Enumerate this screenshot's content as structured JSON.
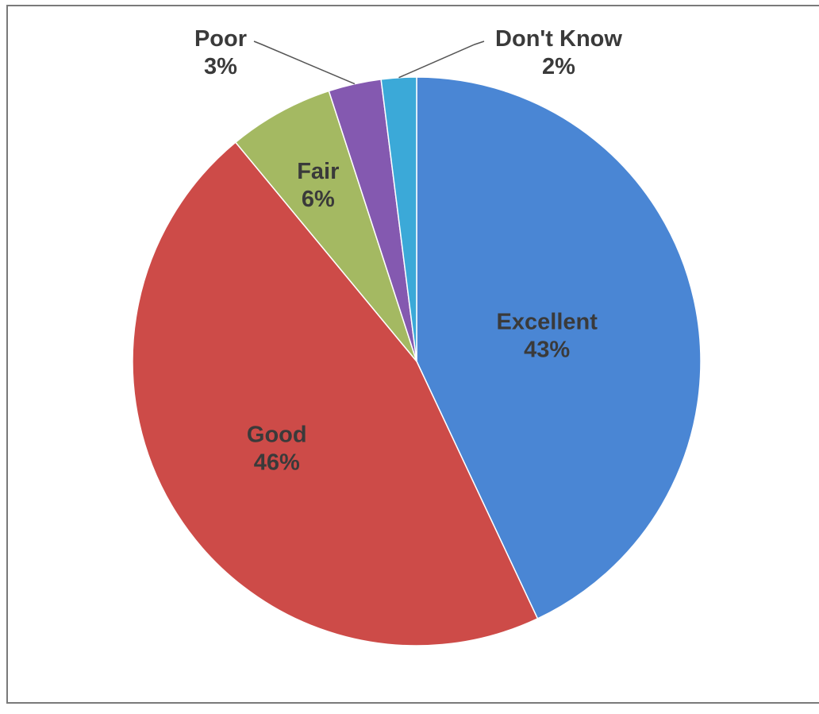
{
  "chart_data": {
    "type": "pie",
    "title": "",
    "slices": [
      {
        "label": "Excellent",
        "value": 43,
        "value_label": "43%",
        "color": "#4a86d4"
      },
      {
        "label": "Good",
        "value": 46,
        "value_label": "46%",
        "color": "#cd4b48"
      },
      {
        "label": "Fair",
        "value": 6,
        "value_label": "6%",
        "color": "#a4b962"
      },
      {
        "label": "Poor",
        "value": 3,
        "value_label": "3%",
        "color": "#8459b0"
      },
      {
        "label": "Don't Know",
        "value": 2,
        "value_label": "2%",
        "color": "#3ba9d8"
      }
    ],
    "start_angle_deg": 0,
    "direction": "clockwise",
    "legend": "none",
    "labels": "category name and percentage on or beside each slice"
  }
}
